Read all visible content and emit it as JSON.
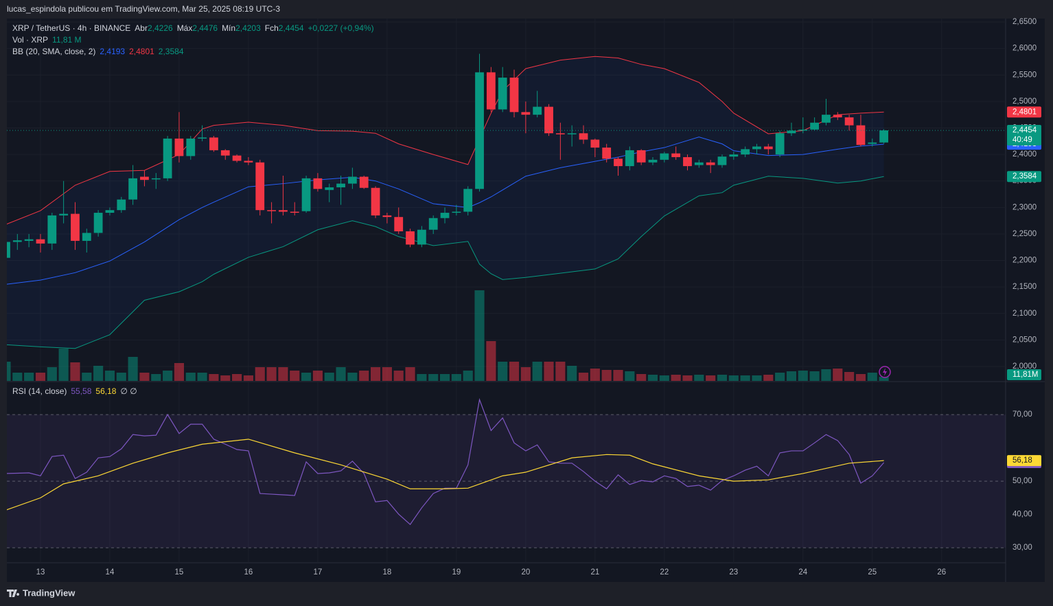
{
  "header": {
    "publisher": "lucas_espindola publicou em TradingView.com, Mar 25, 2025 08:19 UTC-3"
  },
  "legend": {
    "symbol": "XRP / TetherUS · 4h · BINANCE",
    "ohlc": [
      {
        "key": "Abr",
        "value": "2,4226"
      },
      {
        "key": "Máx",
        "value": "2,4476"
      },
      {
        "key": "Mín",
        "value": "2,4203"
      },
      {
        "key": "Fch",
        "value": "2,4454"
      }
    ],
    "change": "+0,0227 (+0,94%)",
    "volume": {
      "name": "Vol · XRP",
      "value": "11,81 M"
    },
    "bb": {
      "name": "BB (20, SMA, close, 2)",
      "values": [
        "2,4193",
        "2,4801",
        "2,3584"
      ]
    },
    "rsi": {
      "name": "RSI (14, close)",
      "values": [
        "55,58",
        "56,18"
      ],
      "extra": "∅ ∅"
    }
  },
  "chart_data": [
    {
      "type": "candlestick",
      "xlim": [
        0.09,
        86.54
      ],
      "xticks": [
        {
          "value": 3,
          "label": "13"
        },
        {
          "value": 9,
          "label": "14"
        },
        {
          "value": 15,
          "label": "15"
        },
        {
          "value": 21,
          "label": "16"
        },
        {
          "value": 27,
          "label": "17"
        },
        {
          "value": 33,
          "label": "18"
        },
        {
          "value": 39,
          "label": "19"
        },
        {
          "value": 45,
          "label": "20"
        },
        {
          "value": 51,
          "label": "21"
        },
        {
          "value": 57,
          "label": "22"
        },
        {
          "value": 63,
          "label": "23"
        },
        {
          "value": 69,
          "label": "24"
        },
        {
          "value": 75,
          "label": "25"
        },
        {
          "value": 81,
          "label": "26"
        }
      ],
      "ylim": [
        1.9728,
        2.6565
      ],
      "yticks": [
        {
          "value": 2.0,
          "label": "2,0000"
        },
        {
          "value": 2.05,
          "label": "2,0500"
        },
        {
          "value": 2.1,
          "label": "2,1000"
        },
        {
          "value": 2.15,
          "label": "2,1500"
        },
        {
          "value": 2.2,
          "label": "2,2000"
        },
        {
          "value": 2.25,
          "label": "2,2500"
        },
        {
          "value": 2.3,
          "label": "2,3000"
        },
        {
          "value": 2.35,
          "label": "2,3500"
        },
        {
          "value": 2.4,
          "label": "2,4000"
        },
        {
          "value": 2.45,
          "label": "2,4500"
        },
        {
          "value": 2.5,
          "label": "2,5000"
        },
        {
          "value": 2.55,
          "label": "2,5500"
        },
        {
          "value": 2.6,
          "label": "2,6000"
        },
        {
          "value": 2.65,
          "label": "2,6500"
        }
      ],
      "up_color": "#089981",
      "down_color": "#f23645",
      "candles": {
        "open": [
          2.205,
          2.235,
          2.237,
          2.24,
          2.232,
          2.285,
          2.288,
          2.237,
          2.252,
          2.29,
          2.295,
          2.315,
          2.358,
          2.353,
          2.355,
          2.43,
          2.397,
          2.43,
          2.432,
          2.408,
          2.398,
          2.388,
          2.385,
          2.295,
          2.295,
          2.292,
          2.293,
          2.355,
          2.333,
          2.338,
          2.345,
          2.358,
          2.337,
          2.285,
          2.282,
          2.255,
          2.23,
          2.258,
          2.28,
          2.29,
          2.292,
          2.335,
          2.555,
          2.485,
          2.545,
          2.48,
          2.475,
          2.49,
          2.44,
          2.438,
          2.44,
          2.428,
          2.413,
          2.392,
          2.378,
          2.408,
          2.385,
          2.39,
          2.402,
          2.395,
          2.38,
          2.385,
          2.38,
          2.396,
          2.4,
          2.41,
          2.415,
          2.4,
          2.44,
          2.445,
          2.447,
          2.46,
          2.475,
          2.47,
          2.455,
          2.42,
          2.4226
        ],
        "high": [
          2.24,
          2.25,
          2.25,
          2.25,
          2.29,
          2.35,
          2.31,
          2.26,
          2.295,
          2.3,
          2.32,
          2.38,
          2.37,
          2.365,
          2.435,
          2.48,
          2.435,
          2.455,
          2.435,
          2.41,
          2.4,
          2.395,
          2.39,
          2.31,
          2.36,
          2.31,
          2.36,
          2.365,
          2.345,
          2.36,
          2.375,
          2.36,
          2.34,
          2.29,
          2.3,
          2.26,
          2.265,
          2.285,
          2.3,
          2.305,
          2.34,
          2.59,
          2.565,
          2.565,
          2.56,
          2.5,
          2.52,
          2.495,
          2.46,
          2.455,
          2.455,
          2.43,
          2.42,
          2.395,
          2.415,
          2.41,
          2.395,
          2.405,
          2.415,
          2.4,
          2.39,
          2.39,
          2.4,
          2.405,
          2.415,
          2.42,
          2.42,
          2.445,
          2.46,
          2.47,
          2.47,
          2.505,
          2.48,
          2.475,
          2.475,
          2.43,
          2.4476
        ],
        "low": [
          2.2,
          2.22,
          2.225,
          2.215,
          2.22,
          2.27,
          2.22,
          2.215,
          2.245,
          2.285,
          2.29,
          2.305,
          2.34,
          2.335,
          2.35,
          2.385,
          2.39,
          2.425,
          2.405,
          2.39,
          2.385,
          2.38,
          2.285,
          2.27,
          2.285,
          2.285,
          2.29,
          2.33,
          2.31,
          2.305,
          2.335,
          2.335,
          2.28,
          2.27,
          2.25,
          2.225,
          2.225,
          2.25,
          2.27,
          2.285,
          2.285,
          2.33,
          2.48,
          2.48,
          2.47,
          2.44,
          2.47,
          2.435,
          2.39,
          2.415,
          2.42,
          2.395,
          2.385,
          2.36,
          2.37,
          2.38,
          2.38,
          2.385,
          2.39,
          2.37,
          2.375,
          2.365,
          2.375,
          2.39,
          2.395,
          2.4,
          2.4,
          2.395,
          2.435,
          2.44,
          2.445,
          2.455,
          2.465,
          2.445,
          2.415,
          2.415,
          2.4203
        ],
        "close": [
          2.235,
          2.238,
          2.24,
          2.232,
          2.285,
          2.288,
          2.237,
          2.252,
          2.29,
          2.295,
          2.315,
          2.355,
          2.352,
          2.355,
          2.43,
          2.397,
          2.43,
          2.432,
          2.408,
          2.398,
          2.388,
          2.385,
          2.295,
          2.293,
          2.292,
          2.29,
          2.355,
          2.335,
          2.338,
          2.345,
          2.358,
          2.337,
          2.285,
          2.282,
          2.255,
          2.23,
          2.258,
          2.28,
          2.29,
          2.292,
          2.335,
          2.555,
          2.485,
          2.545,
          2.48,
          2.475,
          2.49,
          2.44,
          2.438,
          2.44,
          2.428,
          2.413,
          2.392,
          2.378,
          2.408,
          2.385,
          2.39,
          2.402,
          2.395,
          2.378,
          2.385,
          2.38,
          2.396,
          2.4,
          2.41,
          2.415,
          2.41,
          2.44,
          2.445,
          2.447,
          2.46,
          2.475,
          2.47,
          2.455,
          2.418,
          2.4226,
          2.4454
        ]
      },
      "last_price_label": "2,4454",
      "countdown": "40:49",
      "volume": {
        "values": [
          56,
          24,
          24,
          24,
          40,
          94,
          54,
          24,
          44,
          30,
          24,
          70,
          24,
          20,
          30,
          52,
          24,
          24,
          20,
          16,
          20,
          16,
          40,
          40,
          40,
          30,
          24,
          30,
          24,
          40,
          24,
          30,
          40,
          40,
          30,
          40,
          20,
          20,
          20,
          20,
          30,
          264,
          116,
          56,
          56,
          40,
          56,
          56,
          56,
          44,
          24,
          36,
          32,
          32,
          28,
          20,
          18,
          16,
          18,
          16,
          18,
          16,
          18,
          16,
          16,
          16,
          18,
          24,
          28,
          30,
          28,
          34,
          36,
          26,
          20,
          24,
          11.81
        ],
        "label": "11,81M",
        "up_color": "rgba(8,153,129,0.5)",
        "down_color": "rgba(242,54,69,0.5)"
      },
      "bands": {
        "x": [
          0,
          3,
          6,
          9,
          12,
          15,
          17,
          18,
          21,
          24,
          27,
          30,
          32,
          34,
          37,
          40,
          41,
          42,
          43,
          45,
          48,
          51,
          53,
          55,
          57,
          60,
          62,
          63,
          66,
          69,
          72,
          74,
          76
        ],
        "fill": "rgba(41,98,255,0.06)",
        "basis": {
          "color": "#2962ff",
          "label": "2,4193",
          "values": [
            2.155,
            2.163,
            2.177,
            2.199,
            2.235,
            2.277,
            2.3,
            2.31,
            2.339,
            2.345,
            2.352,
            2.357,
            2.35,
            2.335,
            2.307,
            2.3,
            2.309,
            2.32,
            2.333,
            2.359,
            2.375,
            2.387,
            2.395,
            2.405,
            2.413,
            2.433,
            2.42,
            2.407,
            2.398,
            2.4,
            2.41,
            2.416,
            2.4193
          ]
        },
        "upper": {
          "color": "#f23645",
          "label": "2,4801",
          "values": [
            2.268,
            2.294,
            2.342,
            2.368,
            2.37,
            2.4,
            2.448,
            2.455,
            2.461,
            2.455,
            2.445,
            2.444,
            2.44,
            2.42,
            2.4,
            2.381,
            2.43,
            2.478,
            2.52,
            2.562,
            2.578,
            2.585,
            2.582,
            2.57,
            2.562,
            2.536,
            2.5,
            2.478,
            2.439,
            2.445,
            2.475,
            2.478,
            2.4801
          ]
        },
        "lower": {
          "color": "#089981",
          "label": "2,3584",
          "values": [
            2.041,
            2.037,
            2.034,
            2.06,
            2.125,
            2.141,
            2.16,
            2.174,
            2.206,
            2.226,
            2.258,
            2.275,
            2.264,
            2.245,
            2.228,
            2.236,
            2.193,
            2.175,
            2.164,
            2.168,
            2.176,
            2.184,
            2.203,
            2.245,
            2.284,
            2.322,
            2.328,
            2.342,
            2.359,
            2.355,
            2.346,
            2.35,
            2.3584
          ]
        }
      }
    },
    {
      "type": "line",
      "ylim": [
        25.5,
        79.7
      ],
      "yticks": [
        {
          "value": 30,
          "label": "30,00"
        },
        {
          "value": 40,
          "label": "40,00"
        },
        {
          "value": 50,
          "label": "50,00"
        },
        {
          "value": 70,
          "label": "70,00"
        }
      ],
      "levels": [
        70,
        50,
        30
      ],
      "band": [
        30,
        70
      ],
      "band_color": "rgba(126,87,194,0.1)",
      "series": [
        {
          "color": "#7e57c2",
          "label": "55,58",
          "values": [
            52.3,
            52.4,
            52.5,
            51.6,
            57.4,
            57.8,
            50.8,
            52.7,
            57,
            57.4,
            59.7,
            64,
            63.6,
            63.8,
            70,
            64.3,
            67.1,
            67.1,
            62.6,
            61.1,
            59.5,
            59.1,
            46.3,
            46.1,
            45.9,
            45.7,
            55.8,
            52.3,
            52.5,
            53.1,
            56,
            52.3,
            43.8,
            44.2,
            40.1,
            37,
            42,
            46.3,
            47.9,
            47.9,
            54.9,
            74.5,
            65.2,
            69,
            61.5,
            59.1,
            60.9,
            55.8,
            55.4,
            55.4,
            52.9,
            50,
            47.7,
            51.9,
            49,
            50.2,
            49.8,
            51.6,
            50.8,
            48.4,
            48.8,
            47.3,
            50.2,
            51.6,
            53.3,
            54.5,
            51.6,
            58.5,
            59.1,
            59.1,
            61.5,
            64,
            62.2,
            58,
            49.4,
            51.6,
            55.58
          ]
        },
        {
          "color": "#fdd835",
          "label": "56,18",
          "x": [
            0,
            3,
            5,
            8,
            11,
            14,
            17,
            21,
            25,
            29,
            33,
            35,
            38,
            40,
            43,
            45,
            49,
            52,
            54,
            56,
            60,
            63,
            66,
            69,
            73,
            76
          ],
          "values": [
            41.3,
            45,
            49.2,
            51.6,
            55.4,
            58.5,
            61.1,
            62.6,
            58.5,
            54.9,
            50.6,
            47.7,
            47.7,
            47.9,
            51.6,
            52.7,
            57,
            58,
            57.8,
            55.2,
            51.6,
            50,
            50.4,
            52.3,
            55.4,
            56.18
          ]
        }
      ]
    }
  ],
  "footer": {
    "brand": "TradingView"
  }
}
